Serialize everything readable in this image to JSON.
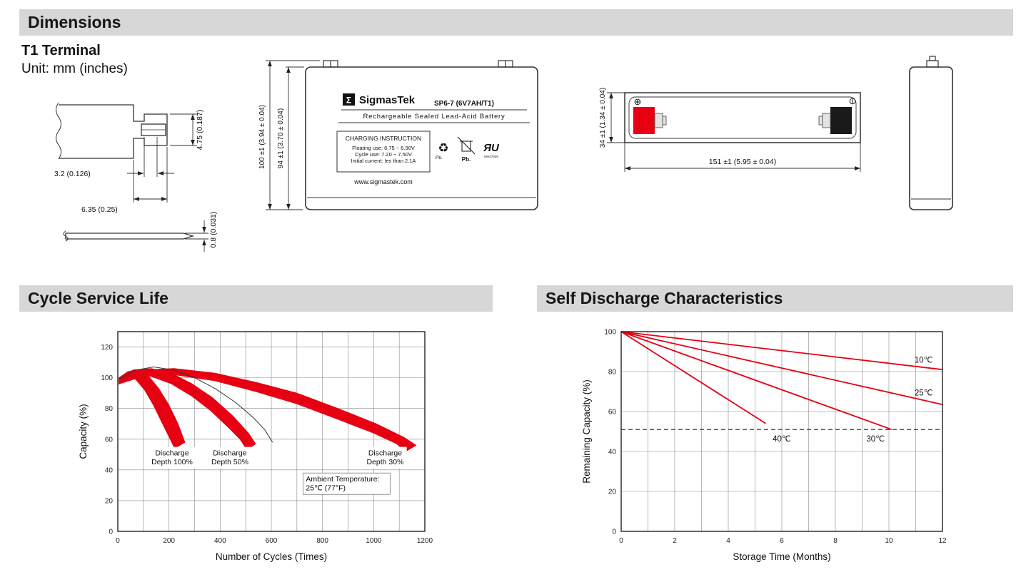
{
  "sections": {
    "dimensions": "Dimensions"
  },
  "terminal": {
    "heading": "T1 Terminal",
    "unit": "Unit: mm (inches)",
    "dim_height": "4.75 (0.187)",
    "dim_width_inner": "3.2 (0.126)",
    "dim_width_outer": "6.35 (0.25)",
    "dim_thickness": "0.8 (0.031)"
  },
  "front_view": {
    "logo_sigma": "Σ",
    "brand": "SigmasTek",
    "model": "SP6-7 (6V7AH/T1)",
    "subtitle": "Rechargeable Sealed Lead-Acid Battery",
    "charging_title": "CHARGING INSTRUCTION",
    "charging_lines": [
      "Floating use: 6.75 ~ 6.90V",
      "Cycle use: 7.20 ~ 7.50V",
      "Initial current: les than 2.1A"
    ],
    "website": "www.sigmastek.com",
    "recycle_glyph": "♻",
    "pb_small": "Pb.",
    "pb_bold": "Pb.",
    "ul_mark": "ЯU",
    "ul_code": "MH47929",
    "dim_total_height": "100 ±1 (3.94 ± 0.04)",
    "dim_case_height": "94 ±1 (3.70 ± 0.04)"
  },
  "top_view": {
    "plus_symbol": "⊕",
    "minus_symbol": "⊖",
    "dim_width": "34 ±1 (1.34 ± 0.04)",
    "dim_length": "151 ±1 (5.95 ± 0.04)"
  },
  "chart_data": [
    {
      "type": "area",
      "title": "Cycle Service Life",
      "xlabel": "Number of Cycles (Times)",
      "ylabel": "Capacity (%)",
      "xlim": [
        0,
        1200
      ],
      "ylim": [
        0,
        130
      ],
      "xticks": [
        0,
        200,
        400,
        600,
        800,
        1000,
        1200
      ],
      "yticks": [
        0,
        20,
        40,
        60,
        80,
        100,
        120
      ],
      "x_grid_step": 100,
      "y_grid_step": 20,
      "color": "#e60012",
      "grid": true,
      "bands": [
        {
          "name": "Discharge Depth 100%",
          "upper": [
            [
              5,
              100
            ],
            [
              40,
              104
            ],
            [
              80,
              105
            ],
            [
              120,
              101
            ],
            [
              160,
              93
            ],
            [
              200,
              82
            ],
            [
              235,
              70
            ],
            [
              262,
              58
            ]
          ],
          "lower": [
            [
              5,
              96
            ],
            [
              35,
              100
            ],
            [
              70,
              99
            ],
            [
              105,
              92
            ],
            [
              140,
              82
            ],
            [
              175,
              70
            ],
            [
              205,
              60
            ],
            [
              222,
              54
            ]
          ]
        },
        {
          "name": "Discharge Depth 50%",
          "upper": [
            [
              5,
              100
            ],
            [
              60,
              105
            ],
            [
              130,
              106
            ],
            [
              210,
              103
            ],
            [
              290,
              96
            ],
            [
              370,
              87
            ],
            [
              450,
              75
            ],
            [
              510,
              64
            ],
            [
              538,
              57
            ]
          ],
          "lower": [
            [
              5,
              96
            ],
            [
              60,
              101
            ],
            [
              130,
              101
            ],
            [
              210,
              96
            ],
            [
              290,
              88
            ],
            [
              360,
              79
            ],
            [
              430,
              68
            ],
            [
              478,
              60
            ],
            [
              505,
              53
            ]
          ]
        },
        {
          "name": "Discharge Depth 30%",
          "upper": [
            [
              5,
              100
            ],
            [
              100,
              105
            ],
            [
              220,
              106
            ],
            [
              380,
              103
            ],
            [
              540,
              97
            ],
            [
              700,
              90
            ],
            [
              860,
              80
            ],
            [
              1010,
              70
            ],
            [
              1120,
              61
            ],
            [
              1165,
              56
            ]
          ],
          "lower": [
            [
              5,
              96
            ],
            [
              100,
              101
            ],
            [
              220,
              102
            ],
            [
              380,
              98
            ],
            [
              540,
              91
            ],
            [
              700,
              83
            ],
            [
              860,
              73
            ],
            [
              1000,
              64
            ],
            [
              1090,
              57
            ],
            [
              1125,
              52
            ]
          ]
        }
      ],
      "outline_curve": [
        [
          5,
          99
        ],
        [
          70,
          105
        ],
        [
          140,
          107
        ],
        [
          220,
          105
        ],
        [
          300,
          100
        ],
        [
          380,
          93
        ],
        [
          460,
          84
        ],
        [
          530,
          74
        ],
        [
          575,
          66
        ],
        [
          605,
          58
        ]
      ],
      "annotations": [
        {
          "lines": [
            "Discharge",
            "Depth 100%"
          ],
          "x": 212,
          "y": 48
        },
        {
          "lines": [
            "Discharge",
            "Depth 50%"
          ],
          "x": 438,
          "y": 48
        },
        {
          "lines": [
            "Discharge",
            "Depth 30%"
          ],
          "x": 1045,
          "y": 48
        },
        {
          "lines": [
            "Ambient Temperature:",
            "25℃ (77°F)"
          ],
          "x": 735,
          "y": 31,
          "align": "left",
          "box": true
        }
      ]
    },
    {
      "type": "line",
      "title": "Self Discharge Characteristics",
      "xlabel": "Storage Time (Months)",
      "ylabel": "Remaining Capacity (%)",
      "xlim": [
        0,
        12
      ],
      "ylim": [
        0,
        100
      ],
      "xticks": [
        0,
        2,
        4,
        6,
        8,
        10,
        12
      ],
      "yticks": [
        0,
        20,
        40,
        60,
        80,
        100
      ],
      "x_grid_step": 1,
      "y_grid_step": 20,
      "color": "#e60012",
      "grid": true,
      "series": [
        {
          "name": "10℃",
          "points": [
            [
              0,
              100
            ],
            [
              12,
              81
            ]
          ],
          "label_at": [
            11.3,
            84.5
          ]
        },
        {
          "name": "25℃",
          "points": [
            [
              0,
              100
            ],
            [
              12,
              63.5
            ]
          ],
          "label_at": [
            11.3,
            68
          ]
        },
        {
          "name": "30℃",
          "points": [
            [
              0,
              100
            ],
            [
              10.1,
              51
            ]
          ],
          "label_at": [
            9.5,
            45
          ]
        },
        {
          "name": "40℃",
          "points": [
            [
              0,
              100
            ],
            [
              5.4,
              54
            ]
          ],
          "label_at": [
            6.0,
            45
          ]
        }
      ],
      "dashed_line_y": 51
    }
  ]
}
